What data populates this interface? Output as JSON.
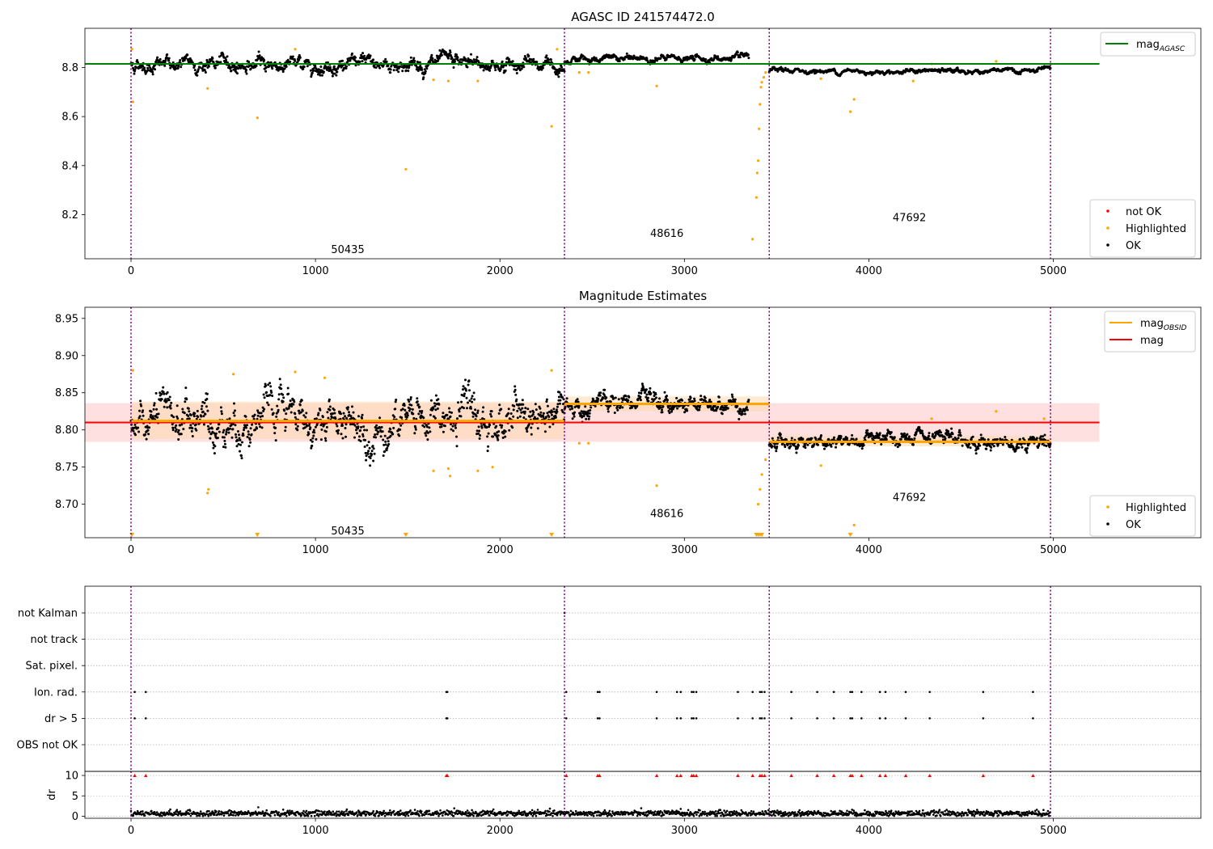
{
  "figure": {
    "title_top": "AGASC ID 241574472.0",
    "title_middle": "Magnitude Estimates"
  },
  "colors": {
    "ok": "#000000",
    "highlighted": "#ffa500",
    "not_ok": "#ff0000",
    "mag_agasc": "#008000",
    "mag_obsid": "#ffa500",
    "mag": "#ff0000",
    "obsid_boundary": "#800080",
    "band_mag": "#ffcccc",
    "band_obsid": "#ffd8b0"
  },
  "chart_data": [
    {
      "id": "top",
      "type": "scatter",
      "title": "AGASC ID 241574472.0",
      "xlim": [
        -250,
        5800
      ],
      "ylim": [
        8.02,
        8.96
      ],
      "xticks": [
        0,
        1000,
        2000,
        3000,
        4000,
        5000
      ],
      "yticks": [
        8.2,
        8.4,
        8.6,
        8.8
      ],
      "obsid_boundaries": [
        0,
        2350,
        3460,
        4985
      ],
      "obsid_labels": [
        {
          "text": "50435",
          "x": 1175,
          "y": 8.06
        },
        {
          "text": "48616",
          "x": 2905,
          "y": 8.125
        },
        {
          "text": "47692",
          "x": 4220,
          "y": 8.19
        }
      ],
      "segment_means": [
        {
          "x": [
            0,
            2350
          ],
          "y": 8.813,
          "wiggle": 0.018
        },
        {
          "x": [
            2350,
            3350
          ],
          "y": 8.836,
          "wiggle": 0.008
        },
        {
          "x": [
            3460,
            4985
          ],
          "y": 8.785,
          "wiggle": 0.006
        }
      ],
      "mag_agasc": 8.815,
      "mag_agasc_x": [
        -250,
        5250
      ],
      "highlighted_points": [
        [
          5,
          8.875
        ],
        [
          10,
          8.66
        ],
        [
          415,
          8.715
        ],
        [
          685,
          8.595
        ],
        [
          890,
          8.875
        ],
        [
          1490,
          8.385
        ],
        [
          1640,
          8.75
        ],
        [
          1720,
          8.745
        ],
        [
          1880,
          8.745
        ],
        [
          2280,
          8.56
        ],
        [
          2310,
          8.875
        ],
        [
          2430,
          8.78
        ],
        [
          2480,
          8.78
        ],
        [
          2850,
          8.725
        ],
        [
          3370,
          8.1
        ],
        [
          3390,
          8.27
        ],
        [
          3395,
          8.37
        ],
        [
          3400,
          8.42
        ],
        [
          3405,
          8.55
        ],
        [
          3410,
          8.65
        ],
        [
          3415,
          8.72
        ],
        [
          3420,
          8.74
        ],
        [
          3430,
          8.76
        ],
        [
          3440,
          8.78
        ],
        [
          3740,
          8.755
        ],
        [
          3900,
          8.62
        ],
        [
          3920,
          8.67
        ],
        [
          4340,
          8.815
        ],
        [
          4690,
          8.825
        ],
        [
          4240,
          8.745
        ]
      ],
      "legends": [
        {
          "position": "top-right",
          "entries": [
            {
              "name": "mag_AGASC",
              "kind": "line"
            }
          ]
        },
        {
          "position": "lower-right",
          "entries": [
            {
              "name": "not OK",
              "kind": "dot"
            },
            {
              "name": "Highlighted",
              "kind": "dot"
            },
            {
              "name": "OK",
              "kind": "dot"
            }
          ]
        }
      ]
    },
    {
      "id": "middle",
      "type": "scatter",
      "title": "Magnitude Estimates",
      "xlim": [
        -250,
        5800
      ],
      "ylim": [
        8.655,
        8.965
      ],
      "xticks": [
        0,
        1000,
        2000,
        3000,
        4000,
        5000
      ],
      "yticks": [
        8.7,
        8.75,
        8.8,
        8.85,
        8.9,
        8.95
      ],
      "obsid_boundaries": [
        0,
        2350,
        3460,
        4985
      ],
      "obsid_labels": [
        {
          "text": "50435",
          "x": 1175,
          "y": 8.665
        },
        {
          "text": "48616",
          "x": 2905,
          "y": 8.688
        },
        {
          "text": "47692",
          "x": 4220,
          "y": 8.71
        }
      ],
      "mag": 8.81,
      "mag_band": [
        8.784,
        8.836
      ],
      "mag_x": [
        -250,
        5250
      ],
      "mag_obsid": [
        {
          "x": [
            0,
            2350
          ],
          "y": 8.812,
          "band": [
            8.788,
            8.838
          ]
        },
        {
          "x": [
            2350,
            3460
          ],
          "y": 8.835,
          "band": [
            8.825,
            8.845
          ]
        },
        {
          "x": [
            3460,
            4985
          ],
          "y": 8.784,
          "band": [
            8.778,
            8.792
          ]
        }
      ],
      "highlighted_points": [
        [
          10,
          8.88
        ],
        [
          415,
          8.715
        ],
        [
          420,
          8.72
        ],
        [
          555,
          8.875
        ],
        [
          890,
          8.878
        ],
        [
          1050,
          8.87
        ],
        [
          1640,
          8.745
        ],
        [
          1720,
          8.748
        ],
        [
          1730,
          8.738
        ],
        [
          1880,
          8.745
        ],
        [
          1960,
          8.75
        ],
        [
          2280,
          8.88
        ],
        [
          2430,
          8.782
        ],
        [
          2480,
          8.782
        ],
        [
          2850,
          8.725
        ],
        [
          3400,
          8.7
        ],
        [
          3410,
          8.72
        ],
        [
          3420,
          8.74
        ],
        [
          3440,
          8.76
        ],
        [
          3740,
          8.752
        ],
        [
          3920,
          8.672
        ],
        [
          4340,
          8.815
        ],
        [
          4690,
          8.825
        ],
        [
          4950,
          8.815
        ]
      ],
      "clipped_points": [
        5,
        685,
        1490,
        2280,
        3390,
        3400,
        3410,
        3420,
        3900
      ],
      "legends": [
        {
          "position": "top-right",
          "entries": [
            {
              "name": "mag_OBSID",
              "kind": "line"
            },
            {
              "name": "mag",
              "kind": "line"
            }
          ]
        },
        {
          "position": "lower-right",
          "entries": [
            {
              "name": "Highlighted",
              "kind": "dot"
            },
            {
              "name": "OK",
              "kind": "dot"
            }
          ]
        }
      ]
    },
    {
      "id": "flags",
      "type": "scatter",
      "xlim": [
        -250,
        5800
      ],
      "categories": [
        "not Kalman",
        "not track",
        "Sat. pixel.",
        "Ion. rad.",
        "dr > 5",
        "OBS not OK"
      ],
      "flag_points": {
        "not Kalman": [
          2350
        ],
        "Ion. rad.": [
          20,
          80,
          1710,
          1715,
          2360,
          2530,
          2540,
          2850,
          2960,
          2980,
          3040,
          3050,
          3065,
          3290,
          3370,
          3410,
          3420,
          3435,
          3580,
          3720,
          3810,
          3900,
          3910,
          3960,
          4060,
          4090,
          4200,
          4330,
          4620,
          4890
        ],
        "dr > 5": [
          20,
          80,
          1710,
          1715,
          2360,
          2530,
          2540,
          2850,
          2960,
          2980,
          3040,
          3050,
          3065,
          3290,
          3370,
          3410,
          3420,
          3435,
          3580,
          3720,
          3810,
          3900,
          3910,
          3960,
          4060,
          4090,
          4200,
          4330,
          4620,
          4890
        ]
      },
      "obsid_boundaries": [
        0,
        2350,
        3460,
        4985
      ]
    },
    {
      "id": "dr",
      "type": "scatter",
      "ylabel": "dr",
      "xlim": [
        -250,
        5800
      ],
      "ylim": [
        -0.5,
        11
      ],
      "xticks": [
        0,
        1000,
        2000,
        3000,
        4000,
        5000
      ],
      "yticks": [
        0,
        5,
        10
      ],
      "clipped_marker_y": 10,
      "clipped_points": [
        20,
        80,
        1710,
        1715,
        2360,
        2530,
        2540,
        2850,
        2960,
        2980,
        3040,
        3050,
        3065,
        3290,
        3370,
        3410,
        3420,
        3435,
        3580,
        3720,
        3810,
        3900,
        3910,
        3960,
        4060,
        4090,
        4200,
        4330,
        4620,
        4890
      ],
      "baseline_mean": 0.7,
      "outliers": [
        [
          690,
          2.2
        ],
        [
          2980,
          1.8
        ]
      ],
      "obsid_boundaries": [
        0,
        2350,
        3460,
        4985
      ]
    }
  ]
}
